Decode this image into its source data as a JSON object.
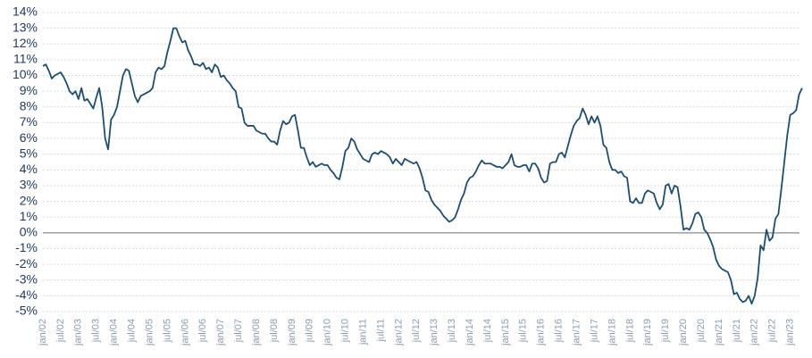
{
  "chart_data": {
    "type": "line",
    "categories": [
      "jan/02",
      null,
      null,
      null,
      null,
      null,
      "jul/02",
      null,
      null,
      null,
      null,
      null,
      "jan/03",
      null,
      null,
      null,
      null,
      null,
      "jul/03",
      null,
      null,
      null,
      null,
      null,
      "jan/04",
      null,
      null,
      null,
      null,
      null,
      "jul/04",
      null,
      null,
      null,
      null,
      null,
      "jan/05",
      null,
      null,
      null,
      null,
      null,
      "jul/05",
      null,
      null,
      null,
      null,
      null,
      "jan/06",
      null,
      null,
      null,
      null,
      null,
      "jul/06",
      null,
      null,
      null,
      null,
      null,
      "jan/07",
      null,
      null,
      null,
      null,
      null,
      "jul/07",
      null,
      null,
      null,
      null,
      null,
      "jan/08",
      null,
      null,
      null,
      null,
      null,
      "jul/08",
      null,
      null,
      null,
      null,
      null,
      "jan/09",
      null,
      null,
      null,
      null,
      null,
      "jul/09",
      null,
      null,
      null,
      null,
      null,
      "jan/10",
      null,
      null,
      null,
      null,
      null,
      "jul/10",
      null,
      null,
      null,
      null,
      null,
      "jan/11",
      null,
      null,
      null,
      null,
      null,
      "jul/11",
      null,
      null,
      null,
      null,
      null,
      "jan/12",
      null,
      null,
      null,
      null,
      null,
      "jul/12",
      null,
      null,
      null,
      null,
      null,
      "jan/13",
      null,
      null,
      null,
      null,
      null,
      "jul/13",
      null,
      null,
      null,
      null,
      null,
      "jan/14",
      null,
      null,
      null,
      null,
      null,
      "jul/14",
      null,
      null,
      null,
      null,
      null,
      "jan/15",
      null,
      null,
      null,
      null,
      null,
      "jul/15",
      null,
      null,
      null,
      null,
      null,
      "jan/16",
      null,
      null,
      null,
      null,
      null,
      "jul/16",
      null,
      null,
      null,
      null,
      null,
      "jan/17",
      null,
      null,
      null,
      null,
      null,
      "jul/17",
      null,
      null,
      null,
      null,
      null,
      "jan/18",
      null,
      null,
      null,
      null,
      null,
      "jul/18",
      null,
      null,
      null,
      null,
      null,
      "jan/19",
      null,
      null,
      null,
      null,
      null,
      "jul/19",
      null,
      null,
      null,
      null,
      null,
      "jan/20",
      null,
      null,
      null,
      null,
      null,
      "jul/20",
      null,
      null,
      null,
      null,
      null,
      "jan/21",
      null,
      null,
      null,
      null,
      null,
      "jul/21",
      null,
      null,
      null,
      null,
      null,
      "jan/22",
      null,
      null,
      null,
      null,
      null,
      "jul/22",
      null,
      null,
      null,
      null,
      null,
      "jan/23",
      null,
      null,
      null,
      null
    ],
    "series": [
      {
        "color": "#1d4e70",
        "values": [
          10.6,
          10.7,
          10.3,
          9.8,
          10.0,
          10.1,
          10.2,
          9.9,
          9.5,
          9.0,
          8.8,
          9.0,
          8.5,
          9.2,
          8.4,
          8.5,
          8.2,
          7.9,
          8.6,
          9.2,
          8.0,
          6.0,
          5.3,
          7.2,
          7.5,
          8.0,
          9.0,
          10.0,
          10.4,
          10.3,
          9.5,
          8.7,
          8.3,
          8.7,
          8.8,
          8.9,
          9.0,
          9.2,
          10.2,
          10.5,
          10.4,
          10.6,
          11.5,
          12.2,
          13.0,
          13.0,
          12.5,
          12.1,
          12.2,
          11.6,
          11.2,
          10.7,
          10.7,
          10.6,
          10.8,
          10.4,
          10.5,
          10.2,
          10.7,
          10.5,
          9.9,
          10.0,
          9.7,
          9.5,
          9.2,
          9.0,
          8.0,
          7.9,
          7.0,
          6.8,
          6.8,
          6.8,
          6.5,
          6.4,
          6.3,
          6.3,
          6.0,
          5.8,
          5.8,
          5.6,
          6.5,
          7.1,
          6.9,
          7.0,
          7.4,
          7.5,
          6.5,
          5.4,
          5.4,
          4.8,
          4.3,
          4.5,
          4.2,
          4.3,
          4.4,
          4.3,
          4.3,
          4.0,
          3.8,
          3.5,
          3.4,
          4.2,
          5.2,
          5.4,
          6.0,
          5.8,
          5.3,
          5.0,
          4.7,
          4.6,
          4.5,
          5.0,
          5.1,
          5.0,
          5.2,
          5.1,
          5.0,
          4.8,
          4.4,
          4.7,
          4.5,
          4.3,
          4.7,
          4.6,
          4.5,
          4.4,
          4.5,
          4.1,
          3.5,
          2.7,
          2.6,
          2.1,
          1.8,
          1.6,
          1.4,
          1.1,
          0.9,
          0.7,
          0.8,
          1.0,
          1.5,
          2.1,
          2.5,
          3.2,
          3.5,
          3.6,
          3.9,
          4.3,
          4.6,
          4.4,
          4.4,
          4.4,
          4.3,
          4.2,
          4.2,
          4.1,
          4.3,
          4.5,
          5.0,
          4.3,
          4.2,
          4.2,
          4.3,
          4.3,
          3.9,
          4.4,
          4.4,
          4.1,
          3.5,
          3.2,
          3.3,
          4.4,
          4.5,
          4.5,
          5.0,
          5.1,
          4.8,
          5.5,
          6.2,
          6.8,
          7.1,
          7.3,
          7.9,
          7.5,
          6.9,
          7.4,
          7.0,
          7.4,
          6.8,
          5.6,
          5.4,
          4.5,
          4.0,
          4.0,
          3.8,
          3.9,
          3.6,
          3.5,
          2.0,
          1.9,
          2.2,
          1.9,
          1.9,
          2.5,
          2.7,
          2.6,
          2.5,
          1.9,
          1.5,
          1.8,
          3.0,
          3.1,
          2.5,
          3.0,
          2.9,
          1.7,
          0.2,
          0.3,
          0.2,
          0.6,
          1.2,
          1.3,
          1.0,
          0.2,
          0.0,
          -0.4,
          -0.9,
          -1.7,
          -2.1,
          -2.3,
          -2.4,
          -2.5,
          -3.0,
          -3.9,
          -3.8,
          -4.2,
          -4.4,
          -4.3,
          -4.0,
          -4.5,
          -4.0,
          -2.9,
          -0.8,
          -1.1,
          0.2,
          -0.5,
          -0.3,
          0.9,
          1.2,
          2.8,
          4.5,
          6.2,
          7.5,
          7.6,
          7.8,
          8.8,
          9.2
        ]
      }
    ],
    "ylim": [
      -5,
      14
    ],
    "yticks": [
      {
        "value": -5,
        "label": "-5%"
      },
      {
        "value": -4,
        "label": "-4%"
      },
      {
        "value": -3,
        "label": "-3%"
      },
      {
        "value": -2,
        "label": "-2%"
      },
      {
        "value": -1,
        "label": "-1%"
      },
      {
        "value": 0,
        "label": "0%"
      },
      {
        "value": 1,
        "label": "1%"
      },
      {
        "value": 2,
        "label": "2%"
      },
      {
        "value": 3,
        "label": "3%"
      },
      {
        "value": 4,
        "label": "4%"
      },
      {
        "value": 5,
        "label": "5%"
      },
      {
        "value": 6,
        "label": "6%"
      },
      {
        "value": 7,
        "label": "7%"
      },
      {
        "value": 8,
        "label": "8%"
      },
      {
        "value": 9,
        "label": "9%"
      },
      {
        "value": 10,
        "label": "10%"
      },
      {
        "value": 11,
        "label": "11%"
      },
      {
        "value": 12,
        "label": "12%"
      },
      {
        "value": 13,
        "label": "13%"
      },
      {
        "value": 14,
        "label": "14%"
      }
    ],
    "grid": true
  }
}
